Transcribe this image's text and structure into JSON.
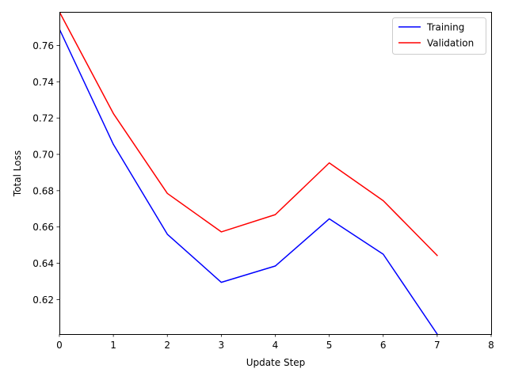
{
  "chart_data": {
    "type": "line",
    "title": "",
    "xlabel": "Update Step",
    "ylabel": "Total Loss",
    "x": [
      0,
      1,
      2,
      3,
      4,
      5,
      6,
      7
    ],
    "xlim": [
      0,
      8
    ],
    "ylim": [
      0.601,
      0.7785
    ],
    "xticks": [
      "0",
      "1",
      "2",
      "3",
      "4",
      "5",
      "6",
      "7",
      "8"
    ],
    "yticks": [
      "0.62",
      "0.64",
      "0.66",
      "0.68",
      "0.70",
      "0.72",
      "0.74",
      "0.76"
    ],
    "legend_position": "top-right",
    "grid": false,
    "series": [
      {
        "name": "Training",
        "color": "#0000ff",
        "values": [
          0.769,
          0.7055,
          0.656,
          0.6295,
          0.6385,
          0.6645,
          0.645,
          0.601
        ]
      },
      {
        "name": "Validation",
        "color": "#ff0000",
        "values": [
          0.7785,
          0.7225,
          0.6785,
          0.6573,
          0.6668,
          0.6953,
          0.6745,
          0.6443
        ]
      }
    ]
  }
}
